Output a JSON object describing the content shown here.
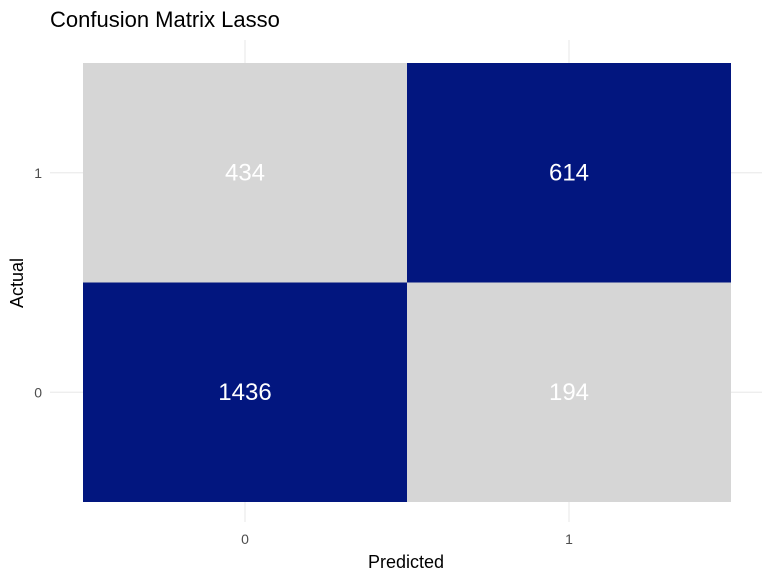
{
  "chart_data": {
    "type": "heatmap",
    "title": "Confusion Matrix Lasso",
    "xlabel": "Predicted",
    "ylabel": "Actual",
    "x_categories": [
      "0",
      "1"
    ],
    "y_categories": [
      "0",
      "1"
    ],
    "cells": [
      {
        "predicted": "0",
        "actual": "1",
        "value": 434,
        "fill": "#d6d6d6"
      },
      {
        "predicted": "1",
        "actual": "1",
        "value": 614,
        "fill": "#02167f"
      },
      {
        "predicted": "0",
        "actual": "0",
        "value": 1436,
        "fill": "#02167f"
      },
      {
        "predicted": "1",
        "actual": "0",
        "value": 194,
        "fill": "#d6d6d6"
      }
    ],
    "grid": true,
    "legend": "none"
  },
  "colors": {
    "correct_fill": "#02167f",
    "incorrect_fill": "#d6d6d6",
    "label_text": "#ffffff",
    "grid": "#ebebeb"
  }
}
